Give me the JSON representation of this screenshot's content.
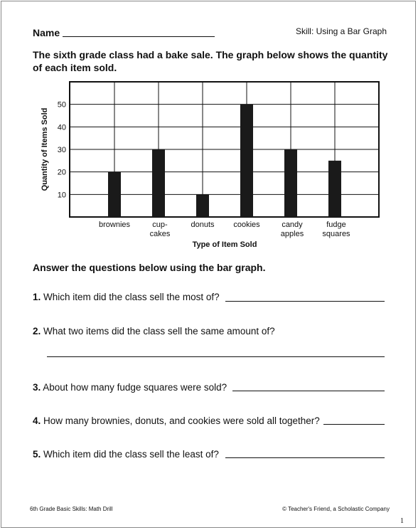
{
  "header": {
    "name_label": "Name",
    "skill": "Skill: Using a Bar Graph"
  },
  "intro": "The sixth grade class had a bake sale. The graph below shows the quantity of each item sold.",
  "chart_data": {
    "type": "bar",
    "title": "",
    "xlabel": "Type of Item Sold",
    "ylabel": "Quantity of Items Sold",
    "categories": [
      [
        "brownies"
      ],
      [
        "cup-",
        "cakes"
      ],
      [
        "donuts"
      ],
      [
        "cookies"
      ],
      [
        "candy",
        "apples"
      ],
      [
        "fudge",
        "squares"
      ]
    ],
    "values": [
      20,
      30,
      10,
      50,
      30,
      25
    ],
    "yticks": [
      10,
      20,
      30,
      40,
      50
    ],
    "ylim": [
      0,
      60
    ],
    "grid": true,
    "bar_color": "#1a1a1a"
  },
  "instructions": "Answer the questions below using the bar graph.",
  "questions": [
    {
      "num": "1.",
      "text": "Which item did the class sell the most of?"
    },
    {
      "num": "2.",
      "text": "What two items did the class sell the same amount of?"
    },
    {
      "num": "3.",
      "text": "About how many fudge squares were sold?"
    },
    {
      "num": "4.",
      "text": "How many brownies, donuts, and cookies were sold all together?"
    },
    {
      "num": "5.",
      "text": "Which item did the class sell the least of?"
    }
  ],
  "footer": {
    "left": "6th Grade Basic Skills: Math Drill",
    "right": "© Teacher's Friend, a Scholastic Company",
    "page": "1"
  }
}
